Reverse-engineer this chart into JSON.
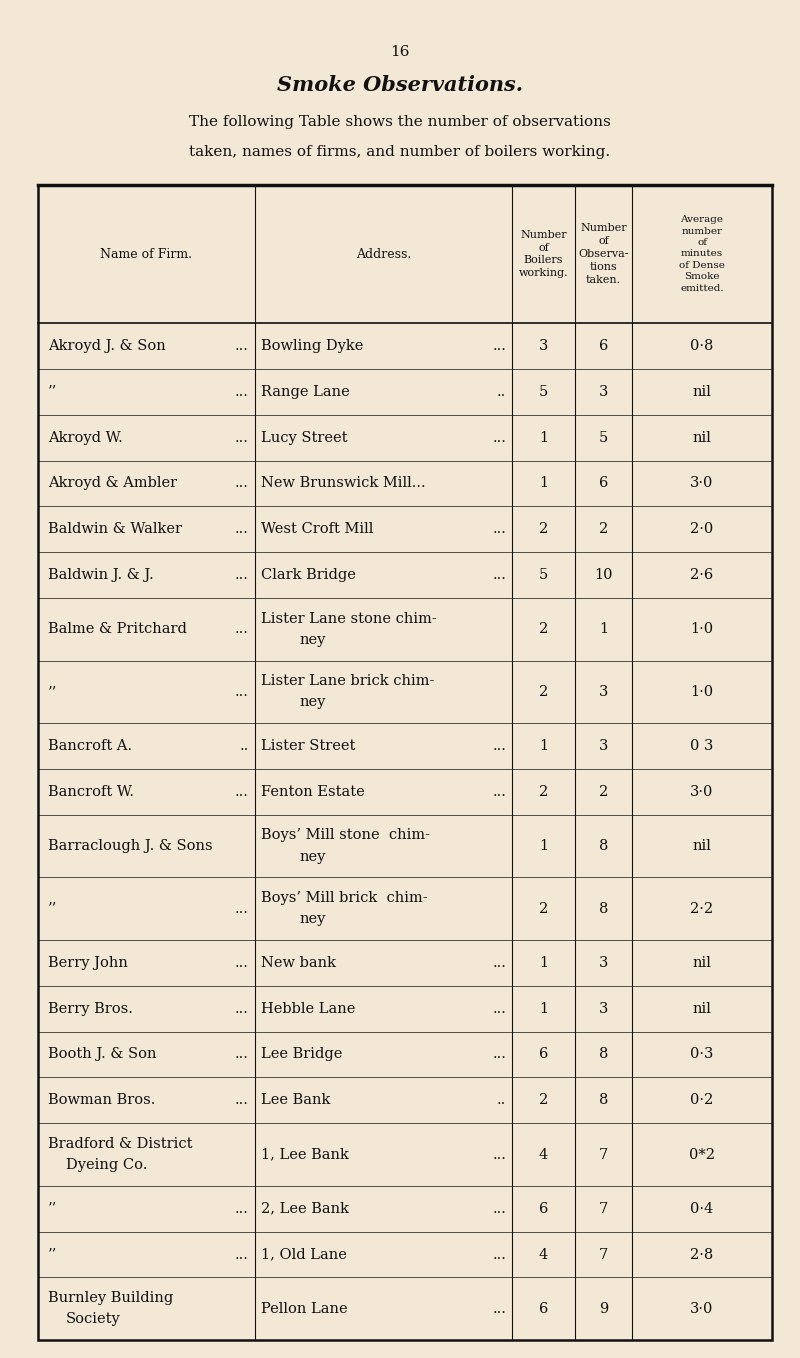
{
  "page_number": "16",
  "title": "Smoke Observations.",
  "subtitle1": "The following Table shows the number of observations",
  "subtitle2": "taken, names of firms, and number of boilers working.",
  "bg_color": "#f2e8d5",
  "text_color": "#111111",
  "col_headers": [
    "Name of Firm.",
    "Address.",
    "Number\nof\nBoilers\nworking.",
    "Number\nof\nObserva-\ntions\ntaken.",
    "Average\nnumber\nof\nminutes\nof Dense\nSmoke\nemitted."
  ],
  "rows": [
    {
      "name": "Akroyd J. & Son",
      "name_dots": "...",
      "addr": "Bowling Dyke",
      "addr_dots": "...",
      "boilers": "3",
      "obs": "6",
      "avg": "0·8"
    },
    {
      "name": "’’",
      "name_dots": "...",
      "addr": "Range Lane",
      "addr_dots": "..",
      "boilers": "5",
      "obs": "3",
      "avg": "nil"
    },
    {
      "name": "Akroyd W.",
      "name_dots": "...",
      "addr": "Lucy Street",
      "addr_dots": "...",
      "boilers": "1",
      "obs": "5",
      "avg": "nil"
    },
    {
      "name": "Akroyd & Ambler",
      "name_dots": "...",
      "addr": "New Brunswick Mill...",
      "addr_dots": "",
      "boilers": "1",
      "obs": "6",
      "avg": "3·0"
    },
    {
      "name": "Baldwin & Walker",
      "name_dots": "...",
      "addr": "West Croft Mill",
      "addr_dots": "...",
      "boilers": "2",
      "obs": "2",
      "avg": "2·0"
    },
    {
      "name": "Baldwin J. & J.",
      "name_dots": "...",
      "addr": "Clark Bridge",
      "addr_dots": "...",
      "boilers": "5",
      "obs": "10",
      "avg": "2·6"
    },
    {
      "name": "Balme & Pritchard",
      "name_dots": "...",
      "addr": "Lister Lane stone chim-",
      "addr2": "ney",
      "addr_dots": "",
      "boilers": "2",
      "obs": "1",
      "avg": "1·0"
    },
    {
      "name": "’’",
      "name_dots": "...",
      "addr": "Lister Lane brick chim-",
      "addr2": "ney",
      "addr_dots": "",
      "boilers": "2",
      "obs": "3",
      "avg": "1·0"
    },
    {
      "name": "Bancroft A.",
      "name_dots": "..",
      "addr": "Lister Street",
      "addr_dots": "...",
      "boilers": "1",
      "obs": "3",
      "avg": "0 3"
    },
    {
      "name": "Bancroft W.",
      "name_dots": "...",
      "addr": "Fenton Estate",
      "addr_dots": "...",
      "boilers": "2",
      "obs": "2",
      "avg": "3·0"
    },
    {
      "name": "Barraclough J. & Sons",
      "name_dots": "",
      "addr": "Boys’ Mill stone  chim-",
      "addr2": "ney",
      "addr_dots": "",
      "boilers": "1",
      "obs": "8",
      "avg": "nil"
    },
    {
      "name": "’’",
      "name_dots": "...",
      "addr": "Boys’ Mill brick  chim-",
      "addr2": "ney",
      "addr_dots": "",
      "boilers": "2",
      "obs": "8",
      "avg": "2·2"
    },
    {
      "name": "Berry John",
      "name_dots": "...",
      "addr": "New bank",
      "addr_dots": "...",
      "boilers": "1",
      "obs": "3",
      "avg": "nil"
    },
    {
      "name": "Berry Bros.",
      "name_dots": "...",
      "addr": "Hebble Lane",
      "addr_dots": "...",
      "boilers": "1",
      "obs": "3",
      "avg": "nil"
    },
    {
      "name": "Booth J. & Son",
      "name_dots": "...",
      "addr": "Lee Bridge",
      "addr_dots": "...",
      "boilers": "6",
      "obs": "8",
      "avg": "0·3"
    },
    {
      "name": "Bowman Bros.",
      "name_dots": "...",
      "addr": "Lee Bank",
      "addr_dots": "..",
      "boilers": "2",
      "obs": "8",
      "avg": "0·2"
    },
    {
      "name": "Bradford & District",
      "name2": "Dyeing Co.",
      "name_dots": "",
      "addr": "1, Lee Bank",
      "addr_dots": "...",
      "boilers": "4",
      "obs": "7",
      "avg": "0*2"
    },
    {
      "name": "’’",
      "name_dots": "...",
      "addr": "2, Lee Bank",
      "addr_dots": "...",
      "boilers": "6",
      "obs": "7",
      "avg": "0·4"
    },
    {
      "name": "’’",
      "name_dots": "...",
      "addr": "1, Old Lane",
      "addr_dots": "...",
      "boilers": "4",
      "obs": "7",
      "avg": "2·8"
    },
    {
      "name": "Burnley Building",
      "name2": "Society",
      "name_dots": "",
      "addr": "Pellon Lane",
      "addr_dots": "...",
      "boilers": "6",
      "obs": "9",
      "avg": "3·0"
    }
  ]
}
